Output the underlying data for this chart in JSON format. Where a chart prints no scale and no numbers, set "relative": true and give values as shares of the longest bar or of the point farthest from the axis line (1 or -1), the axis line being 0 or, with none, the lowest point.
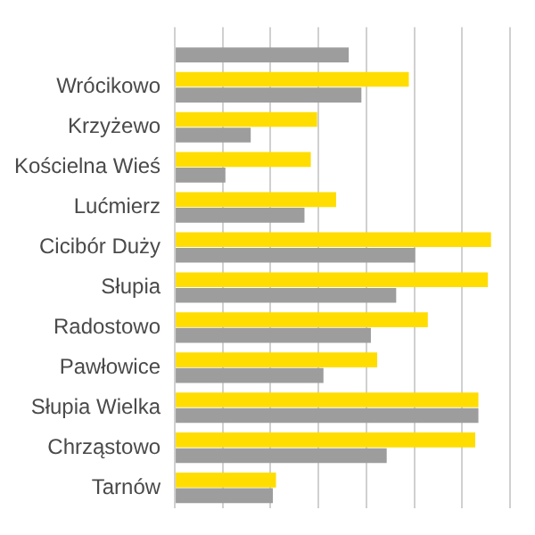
{
  "chart_data": {
    "type": "bar",
    "orientation": "horizontal",
    "relative": true,
    "grid": "x",
    "legend": false,
    "categories": [
      null,
      "Wrócikowo",
      "Krzyżewo",
      "Kościelna Wieś",
      "Lućmierz",
      "Cicibór Duży",
      "Słupia",
      "Radostowo",
      "Pawłowice",
      "Słupia Wielka",
      "Chrząstowo",
      "Tarnów"
    ],
    "series": [
      {
        "color": "#ffdd00",
        "values": [
          null,
          0.74,
          0.45,
          0.43,
          0.51,
          1.0,
          0.99,
          0.8,
          0.64,
          0.96,
          0.95,
          0.32
        ]
      },
      {
        "color": "#9d9d9d",
        "values": [
          0.55,
          0.59,
          0.24,
          0.16,
          0.41,
          0.76,
          0.7,
          0.62,
          0.47,
          0.96,
          0.67,
          0.31
        ]
      }
    ]
  }
}
